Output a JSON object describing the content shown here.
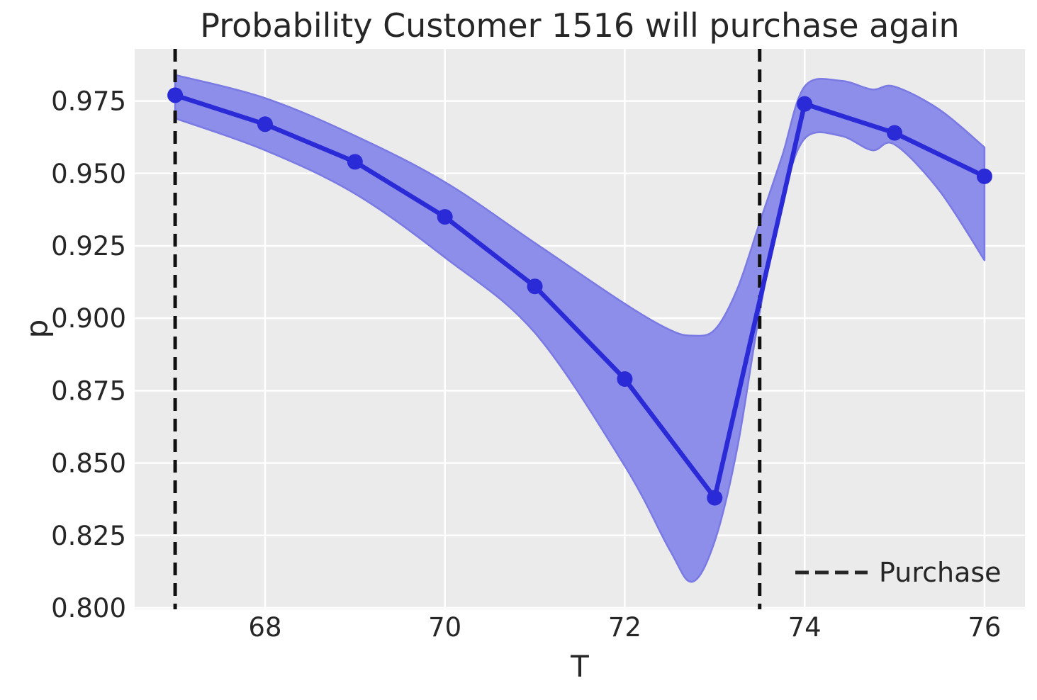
{
  "chart_data": {
    "type": "line",
    "title": "Probability Customer 1516 will purchase again",
    "x_axis": {
      "label": "T",
      "ticks": [
        {
          "v": 68,
          "t": "68"
        },
        {
          "v": 70,
          "t": "70"
        },
        {
          "v": 72,
          "t": "72"
        },
        {
          "v": 74,
          "t": "74"
        },
        {
          "v": 76,
          "t": "76"
        }
      ],
      "lim": [
        66.55,
        76.45
      ]
    },
    "y_axis": {
      "label": "p",
      "ticks": [
        {
          "v": 0.975,
          "t": "0.975"
        },
        {
          "v": 0.95,
          "t": "0.950"
        },
        {
          "v": 0.925,
          "t": "0.925"
        },
        {
          "v": 0.9,
          "t": "0.900"
        },
        {
          "v": 0.875,
          "t": "0.875"
        },
        {
          "v": 0.85,
          "t": "0.850"
        },
        {
          "v": 0.825,
          "t": "0.825"
        },
        {
          "v": 0.8,
          "t": "0.800"
        }
      ],
      "lim": [
        0.7995,
        0.993
      ]
    },
    "grid": true,
    "legend": {
      "position": "lower right",
      "label": "Purchase"
    },
    "series": [
      {
        "name": "purchase-probability",
        "x": [
          67,
          68,
          69,
          70,
          71,
          72,
          73,
          74,
          75,
          76
        ],
        "y": [
          0.977,
          0.967,
          0.954,
          0.935,
          0.911,
          0.879,
          0.838,
          0.974,
          0.964,
          0.949
        ],
        "marker": "circle"
      }
    ],
    "band": {
      "name": "confidence-interval",
      "x": [
        67,
        68,
        69,
        70,
        71,
        72,
        72.5,
        72.75,
        73,
        73.25,
        73.5,
        73.75,
        74,
        74.4,
        74.75,
        75,
        75.5,
        76
      ],
      "upper": [
        0.984,
        0.976,
        0.963,
        0.947,
        0.926,
        0.905,
        0.896,
        0.894,
        0.896,
        0.91,
        0.933,
        0.956,
        0.98,
        0.982,
        0.979,
        0.98,
        0.972,
        0.959
      ],
      "lower": [
        0.969,
        0.958,
        0.943,
        0.921,
        0.895,
        0.849,
        0.82,
        0.809,
        0.823,
        0.855,
        0.902,
        0.94,
        0.962,
        0.963,
        0.958,
        0.96,
        0.944,
        0.92
      ]
    },
    "vlines": {
      "name": "purchase-events",
      "x": [
        67,
        73.5
      ],
      "style": "dashed"
    }
  },
  "styles": {
    "figure_bg": "#ffffff",
    "plot_bg": "#ebebeb",
    "grid_color": "#ffffff",
    "text_color": "#262626",
    "line_color": "#2a2ad7",
    "marker_color": "#2a2ad7",
    "band_fill": "#8d8dea",
    "band_edge": "#7a7ae4",
    "vline_color": "#111111"
  }
}
